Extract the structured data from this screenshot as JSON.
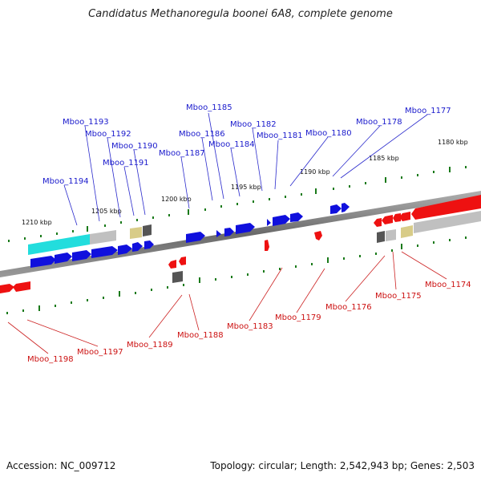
{
  "title": "Candidatus Methanoregula boonei 6A8, complete genome",
  "footer": {
    "accession": "Accession: NC_009712",
    "summary": "Topology: circular; Length: 2,542,943 bp; Genes: 2,503"
  },
  "kbp_labels": [
    "1180 kbp",
    "1185 kbp",
    "1190 kbp",
    "1195 kbp",
    "1200 kbp",
    "1205 kbp",
    "1210 kbp"
  ],
  "genes_top": [
    "Mboo_1177",
    "Mboo_1178",
    "Mboo_1180",
    "Mboo_1181",
    "Mboo_1182",
    "Mboo_1184",
    "Mboo_1185",
    "Mboo_1186",
    "Mboo_1187",
    "Mboo_1190",
    "Mboo_1191",
    "Mboo_1192",
    "Mboo_1193",
    "Mboo_1194"
  ],
  "genes_bottom": [
    "Mboo_1174",
    "Mboo_1175",
    "Mboo_1176",
    "Mboo_1179",
    "Mboo_1183",
    "Mboo_1188",
    "Mboo_1189",
    "Mboo_1197",
    "Mboo_1198"
  ],
  "colors": {
    "forward_gene": "#1010dd",
    "reverse_gene": "#ee1111",
    "backbone": "#808080",
    "tick": "#1a7a1a",
    "label_forward": "#1a1acc",
    "label_reverse": "#cc1111",
    "rrna": "#22dddd",
    "other_rna": "#c0c0c0",
    "trna": "#d8cc88",
    "misc": "#555555"
  }
}
